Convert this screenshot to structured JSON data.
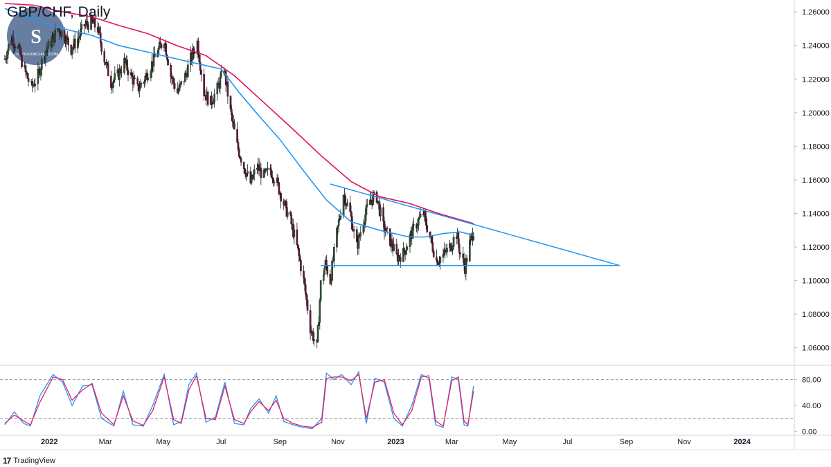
{
  "header": {
    "title": "GBP/CHF, Daily"
  },
  "footer": {
    "brand": "TradingView"
  },
  "watermark": {
    "text": "THUVIENTAICHINH.COM",
    "monogram": "S"
  },
  "colors": {
    "bull": "#2e5a26",
    "bear": "#6d1730",
    "wick": "#131722",
    "ma_slow": "#e0115f",
    "ma_fast": "#2196f3",
    "trendline": "#2196f3",
    "stoch_k": "#2196f3",
    "stoch_d": "#e91e63",
    "grid": "#e0e3eb"
  },
  "chart_data": [
    {
      "type": "candlestick",
      "title": "GBP/CHF, Daily",
      "ylim": [
        1.05,
        1.265
      ],
      "y_ticks": [
        "1.26000",
        "1.24000",
        "1.22000",
        "1.20000",
        "1.18000",
        "1.16000",
        "1.14000",
        "1.12000",
        "1.10000",
        "1.08000",
        "1.06000"
      ],
      "x_ticks": [
        {
          "label": "2022",
          "bold": true,
          "date": "2022-01-01"
        },
        {
          "label": "Mar",
          "bold": false,
          "date": "2022-03-01"
        },
        {
          "label": "May",
          "bold": false,
          "date": "2022-05-01"
        },
        {
          "label": "Jul",
          "bold": false,
          "date": "2022-07-01"
        },
        {
          "label": "Sep",
          "bold": false,
          "date": "2022-09-01"
        },
        {
          "label": "Nov",
          "bold": false,
          "date": "2022-11-01"
        },
        {
          "label": "2023",
          "bold": true,
          "date": "2023-01-01"
        },
        {
          "label": "Mar",
          "bold": false,
          "date": "2023-03-01"
        },
        {
          "label": "May",
          "bold": false,
          "date": "2023-05-01"
        },
        {
          "label": "Jul",
          "bold": false,
          "date": "2023-07-01"
        },
        {
          "label": "Sep",
          "bold": false,
          "date": "2023-09-01"
        },
        {
          "label": "Nov",
          "bold": false,
          "date": "2023-11-01"
        },
        {
          "label": "2024",
          "bold": true,
          "date": "2024-01-01"
        }
      ],
      "close_path": [
        [
          "2021-11-15",
          1.232
        ],
        [
          "2021-11-22",
          1.245
        ],
        [
          "2021-11-29",
          1.238
        ],
        [
          "2021-12-06",
          1.225
        ],
        [
          "2021-12-13",
          1.215
        ],
        [
          "2021-12-20",
          1.222
        ],
        [
          "2021-12-27",
          1.236
        ],
        [
          "2022-01-03",
          1.242
        ],
        [
          "2022-01-10",
          1.25
        ],
        [
          "2022-01-17",
          1.246
        ],
        [
          "2022-01-24",
          1.238
        ],
        [
          "2022-01-31",
          1.244
        ],
        [
          "2022-02-07",
          1.252
        ],
        [
          "2022-02-14",
          1.254
        ],
        [
          "2022-02-21",
          1.25
        ],
        [
          "2022-02-28",
          1.232
        ],
        [
          "2022-03-07",
          1.218
        ],
        [
          "2022-03-14",
          1.222
        ],
        [
          "2022-03-21",
          1.23
        ],
        [
          "2022-03-28",
          1.222
        ],
        [
          "2022-04-04",
          1.214
        ],
        [
          "2022-04-11",
          1.22
        ],
        [
          "2022-04-18",
          1.228
        ],
        [
          "2022-04-25",
          1.236
        ],
        [
          "2022-05-02",
          1.244
        ],
        [
          "2022-05-09",
          1.222
        ],
        [
          "2022-05-16",
          1.212
        ],
        [
          "2022-05-23",
          1.22
        ],
        [
          "2022-05-30",
          1.232
        ],
        [
          "2022-06-06",
          1.242
        ],
        [
          "2022-06-13",
          1.212
        ],
        [
          "2022-06-20",
          1.206
        ],
        [
          "2022-06-27",
          1.214
        ],
        [
          "2022-07-04",
          1.226
        ],
        [
          "2022-07-11",
          1.2
        ],
        [
          "2022-07-18",
          1.18
        ],
        [
          "2022-07-25",
          1.168
        ],
        [
          "2022-08-01",
          1.158
        ],
        [
          "2022-08-08",
          1.168
        ],
        [
          "2022-08-15",
          1.162
        ],
        [
          "2022-08-22",
          1.166
        ],
        [
          "2022-08-29",
          1.158
        ],
        [
          "2022-09-05",
          1.146
        ],
        [
          "2022-09-12",
          1.136
        ],
        [
          "2022-09-19",
          1.12
        ],
        [
          "2022-09-26",
          1.1
        ],
        [
          "2022-10-03",
          1.072
        ],
        [
          "2022-10-10",
          1.06
        ],
        [
          "2022-10-14",
          1.098
        ],
        [
          "2022-10-19",
          1.11
        ],
        [
          "2022-10-24",
          1.1
        ],
        [
          "2022-10-31",
          1.128
        ],
        [
          "2022-11-07",
          1.152
        ],
        [
          "2022-11-14",
          1.14
        ],
        [
          "2022-11-21",
          1.12
        ],
        [
          "2022-11-28",
          1.136
        ],
        [
          "2022-12-05",
          1.148
        ],
        [
          "2022-12-12",
          1.15
        ],
        [
          "2022-12-19",
          1.132
        ],
        [
          "2022-12-26",
          1.124
        ],
        [
          "2023-01-02",
          1.114
        ],
        [
          "2023-01-09",
          1.116
        ],
        [
          "2023-01-16",
          1.126
        ],
        [
          "2023-01-23",
          1.134
        ],
        [
          "2023-01-30",
          1.14
        ],
        [
          "2023-02-06",
          1.126
        ],
        [
          "2023-02-13",
          1.112
        ],
        [
          "2023-02-20",
          1.115
        ],
        [
          "2023-02-27",
          1.12
        ],
        [
          "2023-03-06",
          1.128
        ],
        [
          "2023-03-10",
          1.116
        ],
        [
          "2023-03-15",
          1.108
        ],
        [
          "2023-03-20",
          1.122
        ],
        [
          "2023-03-24",
          1.13
        ]
      ],
      "moving_averages": [
        {
          "role": "slow",
          "points": [
            [
              "2021-11-15",
              1.265
            ],
            [
              "2021-12-15",
              1.264
            ],
            [
              "2022-01-15",
              1.26
            ],
            [
              "2022-02-15",
              1.257
            ],
            [
              "2022-03-15",
              1.252
            ],
            [
              "2022-04-15",
              1.247
            ],
            [
              "2022-05-15",
              1.24
            ],
            [
              "2022-06-15",
              1.234
            ],
            [
              "2022-07-15",
              1.222
            ],
            [
              "2022-08-15",
              1.206
            ],
            [
              "2022-09-15",
              1.19
            ],
            [
              "2022-10-15",
              1.174
            ],
            [
              "2022-11-15",
              1.159
            ],
            [
              "2022-12-15",
              1.15
            ],
            [
              "2023-01-15",
              1.146
            ],
            [
              "2023-02-15",
              1.14
            ],
            [
              "2023-03-24",
              1.134
            ]
          ]
        },
        {
          "role": "fast",
          "points": [
            [
              "2021-11-15",
              1.262
            ],
            [
              "2021-12-15",
              1.256
            ],
            [
              "2022-01-15",
              1.25
            ],
            [
              "2022-02-15",
              1.246
            ],
            [
              "2022-03-15",
              1.24
            ],
            [
              "2022-04-15",
              1.236
            ],
            [
              "2022-05-15",
              1.232
            ],
            [
              "2022-06-15",
              1.228
            ],
            [
              "2022-07-01",
              1.226
            ],
            [
              "2022-07-20",
              1.212
            ],
            [
              "2022-08-10",
              1.198
            ],
            [
              "2022-09-01",
              1.184
            ],
            [
              "2022-09-25",
              1.166
            ],
            [
              "2022-10-20",
              1.148
            ],
            [
              "2022-11-15",
              1.135
            ],
            [
              "2022-12-15",
              1.13
            ],
            [
              "2023-01-15",
              1.126
            ],
            [
              "2023-02-01",
              1.126
            ],
            [
              "2023-02-20",
              1.128
            ],
            [
              "2023-03-10",
              1.129
            ],
            [
              "2023-03-24",
              1.127
            ]
          ]
        }
      ],
      "trendlines": [
        {
          "role": "descending-resistance",
          "from": [
            "2022-10-24",
            1.1575
          ],
          "to": [
            "2023-08-25",
            1.109
          ]
        },
        {
          "role": "horizontal-support",
          "from": [
            "2022-10-14",
            1.109
          ],
          "to": [
            "2023-08-25",
            1.109
          ]
        }
      ]
    },
    {
      "type": "line",
      "role": "stochastic-oscillator",
      "ylim": [
        -5,
        100
      ],
      "y_ticks": [
        "80.00",
        "40.00",
        "0.00"
      ],
      "levels": [
        80,
        20
      ],
      "series": [
        {
          "role": "k",
          "points": [
            [
              "2021-11-15",
              10
            ],
            [
              "2021-11-25",
              30
            ],
            [
              "2021-12-05",
              12
            ],
            [
              "2021-12-12",
              8
            ],
            [
              "2021-12-22",
              55
            ],
            [
              "2022-01-05",
              88
            ],
            [
              "2022-01-15",
              76
            ],
            [
              "2022-01-25",
              40
            ],
            [
              "2022-02-05",
              70
            ],
            [
              "2022-02-15",
              72
            ],
            [
              "2022-02-25",
              20
            ],
            [
              "2022-03-10",
              8
            ],
            [
              "2022-03-20",
              62
            ],
            [
              "2022-03-30",
              10
            ],
            [
              "2022-04-10",
              8
            ],
            [
              "2022-04-20",
              40
            ],
            [
              "2022-05-02",
              88
            ],
            [
              "2022-05-12",
              10
            ],
            [
              "2022-05-20",
              15
            ],
            [
              "2022-05-28",
              72
            ],
            [
              "2022-06-05",
              90
            ],
            [
              "2022-06-15",
              14
            ],
            [
              "2022-06-25",
              22
            ],
            [
              "2022-07-05",
              76
            ],
            [
              "2022-07-15",
              12
            ],
            [
              "2022-07-25",
              10
            ],
            [
              "2022-08-01",
              35
            ],
            [
              "2022-08-10",
              50
            ],
            [
              "2022-08-20",
              28
            ],
            [
              "2022-08-28",
              55
            ],
            [
              "2022-09-05",
              15
            ],
            [
              "2022-09-15",
              10
            ],
            [
              "2022-09-25",
              6
            ],
            [
              "2022-10-05",
              4
            ],
            [
              "2022-10-15",
              20
            ],
            [
              "2022-10-20",
              90
            ],
            [
              "2022-10-28",
              80
            ],
            [
              "2022-11-05",
              88
            ],
            [
              "2022-11-15",
              72
            ],
            [
              "2022-11-23",
              92
            ],
            [
              "2022-12-01",
              12
            ],
            [
              "2022-12-10",
              82
            ],
            [
              "2022-12-20",
              76
            ],
            [
              "2022-12-30",
              20
            ],
            [
              "2023-01-08",
              8
            ],
            [
              "2023-01-18",
              40
            ],
            [
              "2023-01-28",
              88
            ],
            [
              "2023-02-05",
              82
            ],
            [
              "2023-02-12",
              10
            ],
            [
              "2023-02-20",
              6
            ],
            [
              "2023-03-01",
              84
            ],
            [
              "2023-03-08",
              80
            ],
            [
              "2023-03-14",
              10
            ],
            [
              "2023-03-18",
              8
            ],
            [
              "2023-03-24",
              70
            ]
          ]
        },
        {
          "role": "d",
          "points": [
            [
              "2021-11-15",
              12
            ],
            [
              "2021-11-25",
              25
            ],
            [
              "2021-12-05",
              16
            ],
            [
              "2021-12-12",
              10
            ],
            [
              "2021-12-22",
              45
            ],
            [
              "2022-01-05",
              84
            ],
            [
              "2022-01-15",
              80
            ],
            [
              "2022-01-25",
              48
            ],
            [
              "2022-02-05",
              64
            ],
            [
              "2022-02-15",
              74
            ],
            [
              "2022-02-25",
              28
            ],
            [
              "2022-03-10",
              10
            ],
            [
              "2022-03-20",
              55
            ],
            [
              "2022-03-30",
              16
            ],
            [
              "2022-04-10",
              9
            ],
            [
              "2022-04-20",
              32
            ],
            [
              "2022-05-02",
              84
            ],
            [
              "2022-05-12",
              18
            ],
            [
              "2022-05-20",
              12
            ],
            [
              "2022-05-28",
              64
            ],
            [
              "2022-06-05",
              86
            ],
            [
              "2022-06-15",
              20
            ],
            [
              "2022-06-25",
              18
            ],
            [
              "2022-07-05",
              70
            ],
            [
              "2022-07-15",
              18
            ],
            [
              "2022-07-25",
              12
            ],
            [
              "2022-08-01",
              30
            ],
            [
              "2022-08-10",
              46
            ],
            [
              "2022-08-20",
              32
            ],
            [
              "2022-08-28",
              48
            ],
            [
              "2022-09-05",
              20
            ],
            [
              "2022-09-15",
              12
            ],
            [
              "2022-09-25",
              8
            ],
            [
              "2022-10-05",
              6
            ],
            [
              "2022-10-15",
              14
            ],
            [
              "2022-10-20",
              82
            ],
            [
              "2022-10-28",
              84
            ],
            [
              "2022-11-05",
              84
            ],
            [
              "2022-11-15",
              78
            ],
            [
              "2022-11-23",
              88
            ],
            [
              "2022-12-01",
              20
            ],
            [
              "2022-12-10",
              76
            ],
            [
              "2022-12-20",
              80
            ],
            [
              "2022-12-30",
              28
            ],
            [
              "2023-01-08",
              10
            ],
            [
              "2023-01-18",
              32
            ],
            [
              "2023-01-28",
              84
            ],
            [
              "2023-02-05",
              86
            ],
            [
              "2023-02-12",
              16
            ],
            [
              "2023-02-20",
              8
            ],
            [
              "2023-03-01",
              78
            ],
            [
              "2023-03-08",
              84
            ],
            [
              "2023-03-14",
              16
            ],
            [
              "2023-03-18",
              10
            ],
            [
              "2023-03-24",
              62
            ]
          ]
        }
      ]
    }
  ]
}
